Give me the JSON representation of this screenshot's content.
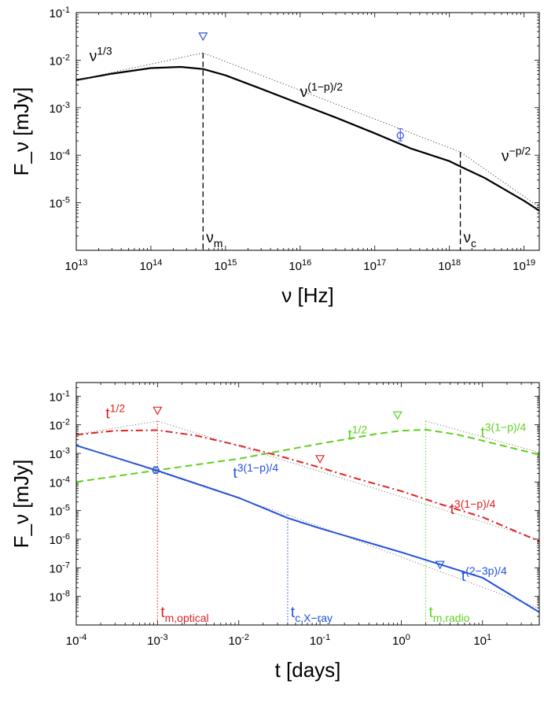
{
  "chart_data": [
    {
      "type": "line",
      "xscale": "log",
      "yscale": "log",
      "xlabel": "ν [Hz]",
      "ylabel": "F_ν [mJy]",
      "xlim": [
        10000000000000.0,
        1.6e+19
      ],
      "ylim": [
        1e-06,
        0.1
      ],
      "x_tick_labels": [
        {
          "base": "10",
          "exp": "13"
        },
        {
          "base": "10",
          "exp": "14"
        },
        {
          "base": "10",
          "exp": "15"
        },
        {
          "base": "10",
          "exp": "16"
        },
        {
          "base": "10",
          "exp": "17"
        },
        {
          "base": "10",
          "exp": "18"
        },
        {
          "base": "10",
          "exp": "19"
        }
      ],
      "y_tick_labels": [
        {
          "base": "10",
          "exp": "-5"
        },
        {
          "base": "10",
          "exp": "-4"
        },
        {
          "base": "10",
          "exp": "-3"
        },
        {
          "base": "10",
          "exp": "-2"
        },
        {
          "base": "10",
          "exp": "-1"
        }
      ],
      "colors": {
        "model": "#000000",
        "data": "#3050e0"
      },
      "series": [
        {
          "style": "solid",
          "x": [
            10000000000000.0,
            30000000000000.0,
            100000000000000.0,
            250000000000000.0,
            500000000000000.0,
            1000000000000000.0,
            3000000000000000.0,
            1e+16,
            3e+16,
            1e+17,
            3e+17,
            1e+18,
            1.4e+18,
            3e+18,
            1e+19,
            1.6e+19
          ],
          "y": [
            0.0038,
            0.0052,
            0.0068,
            0.0072,
            0.0065,
            0.0048,
            0.0025,
            0.0012,
            0.00062,
            0.00029,
            0.00014,
            7.5e-05,
            5.8e-05,
            3.3e-05,
            1.1e-05,
            6.8e-06
          ]
        },
        {
          "style": "dotted",
          "x": [
            10000000000000.0,
            500000000000000.0,
            1.4e+18,
            1.6e+19
          ],
          "y": [
            0.0038,
            0.0142,
            0.000117,
            8.1e-06
          ]
        }
      ],
      "vlines": [
        {
          "x": 500000000000000.0,
          "y_top": 0.0142,
          "label": "ν",
          "sub": "m"
        },
        {
          "x": 1.4e+18,
          "y_top": 0.000117,
          "label": "ν",
          "sub": "c"
        }
      ],
      "points": [
        {
          "x": 2.2e+17,
          "y": 0.00026,
          "ylo": 0.0002,
          "yhi": 0.00036,
          "marker": "circle-errorbar"
        },
        {
          "x": 500000000000000.0,
          "y": 0.032,
          "marker": "triangle-down"
        }
      ],
      "annotations": [
        {
          "text": "ν",
          "sup": "1/3",
          "x": 15000000000000.0,
          "y": 0.0095
        },
        {
          "text": "ν",
          "sup": "(1−p)/2",
          "x": 1e+16,
          "y": 0.0017
        },
        {
          "text": "ν",
          "sup": "−p/2",
          "x": 5e+18,
          "y": 7.5e-05
        }
      ]
    },
    {
      "type": "line",
      "xscale": "log",
      "yscale": "log",
      "xlabel": "t [days]",
      "ylabel": "F_ν [mJy]",
      "xlim": [
        0.0001,
        50
      ],
      "ylim": [
        1e-09,
        0.3
      ],
      "x_tick_labels": [
        {
          "base": "10",
          "exp": "-4"
        },
        {
          "base": "10",
          "exp": "-3"
        },
        {
          "base": "10",
          "exp": "-2"
        },
        {
          "base": "10",
          "exp": "-1"
        },
        {
          "base": "10",
          "exp": "0"
        },
        {
          "base": "10",
          "exp": "1"
        }
      ],
      "y_tick_labels": [
        {
          "base": "10",
          "exp": "-8"
        },
        {
          "base": "10",
          "exp": "-7"
        },
        {
          "base": "10",
          "exp": "-6"
        },
        {
          "base": "10",
          "exp": "-5"
        },
        {
          "base": "10",
          "exp": "-4"
        },
        {
          "base": "10",
          "exp": "-3"
        },
        {
          "base": "10",
          "exp": "-2"
        },
        {
          "base": "10",
          "exp": "-1"
        }
      ],
      "series": [
        {
          "band": "optical",
          "color": "#e02020",
          "style": "dashdot",
          "x": [
            0.0001,
            0.0003,
            0.001,
            0.003,
            0.01,
            0.03,
            0.1,
            0.3,
            1,
            3,
            10,
            50
          ],
          "y": [
            0.0045,
            0.0062,
            0.0065,
            0.0042,
            0.0019,
            0.00085,
            0.00032,
            0.000125,
            4.8e-05,
            1.7e-05,
            5.9e-06,
            8.5e-07
          ]
        },
        {
          "band": "radio",
          "color": "#60d020",
          "style": "dashed",
          "x": [
            0.0001,
            0.001,
            0.01,
            0.1,
            0.5,
            1,
            2,
            5,
            10,
            50
          ],
          "y": [
            0.0001,
            0.00026,
            0.00065,
            0.0022,
            0.0048,
            0.0062,
            0.0068,
            0.0045,
            0.0028,
            0.0009
          ]
        },
        {
          "band": "X-ray",
          "color": "#2050e0",
          "style": "solid",
          "x": [
            0.0001,
            0.001,
            0.01,
            0.04,
            0.1,
            1,
            10,
            50
          ],
          "y": [
            0.0019,
            0.00025,
            2.8e-05,
            5.5e-06,
            2.4e-06,
            3.5e-07,
            4.5e-08,
            2.8e-09
          ]
        },
        {
          "band": "optical-asymptote",
          "color": "#808080",
          "style": "dotted",
          "x": [
            0.0001,
            0.001,
            50
          ],
          "y": [
            0.0046,
            0.0135,
            9.7e-07
          ]
        },
        {
          "band": "radio-asymptote",
          "color": "#808080",
          "style": "dotted",
          "x": [
            2,
            50
          ],
          "y": [
            0.0135,
            0.00108
          ]
        },
        {
          "band": "X-ray-asymptote",
          "color": "#808080",
          "style": "dotted",
          "x": [
            0.0001,
            0.04,
            50
          ],
          "y": [
            0.002,
            7.2e-06,
            3.8e-09
          ]
        }
      ],
      "vlines": [
        {
          "x": 0.001,
          "y_top": 0.0135,
          "color": "#e02020",
          "label": "t",
          "sub": "m,optical"
        },
        {
          "x": 0.04,
          "y_top": 7.2e-06,
          "color": "#2050e0",
          "label": "t",
          "sub": "c,X−ray"
        },
        {
          "x": 2,
          "y_top": 0.0135,
          "color": "#60d020",
          "label": "t",
          "sub": "m,radio"
        }
      ],
      "points": [
        {
          "x": 0.001,
          "y": 0.032,
          "marker": "triangle-down",
          "color": "#e02020"
        },
        {
          "x": 0.1,
          "y": 0.00065,
          "marker": "triangle-down",
          "color": "#e02020"
        },
        {
          "x": 0.9,
          "y": 0.022,
          "marker": "triangle-down",
          "color": "#60d020"
        },
        {
          "x": 3,
          "y": 1.3e-07,
          "marker": "triangle-down",
          "color": "#2050e0"
        },
        {
          "x": 0.00095,
          "y": 0.00026,
          "ylo": 0.0002,
          "yhi": 0.00034,
          "marker": "circle-errorbar",
          "color": "#2050e0"
        }
      ],
      "annotations": [
        {
          "text": "t",
          "sup": "1/2",
          "x": 0.00023,
          "y": 0.017,
          "color": "#e02020"
        },
        {
          "text": "t",
          "sup": "1/2",
          "x": 0.22,
          "y": 0.003,
          "color": "#60d020"
        },
        {
          "text": "t",
          "sup": "3(1−p)/4",
          "x": 9.5,
          "y": 0.0037,
          "color": "#60d020"
        },
        {
          "text": "t",
          "sup": "3(1−p)/4",
          "x": 0.0085,
          "y": 0.00014,
          "color": "#2050e0"
        },
        {
          "text": "t",
          "sup": "3(1−p)/4",
          "x": 4,
          "y": 7.5e-06,
          "color": "#e02020"
        },
        {
          "text": "t",
          "sup": "(2−3p)/4",
          "x": 5.5,
          "y": 3.5e-08,
          "color": "#2050e0"
        }
      ]
    }
  ]
}
